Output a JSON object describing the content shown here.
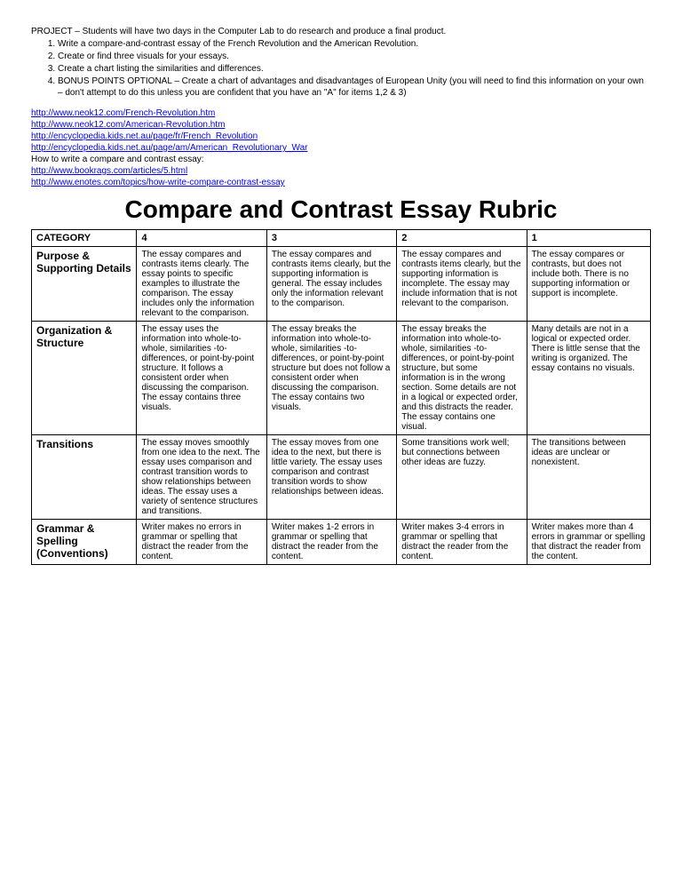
{
  "project": {
    "header": "PROJECT – Students will have two days in the Computer Lab to do research and produce a final product.",
    "items": [
      "Write a compare-and-contrast essay of the French Revolution and the American Revolution.",
      "Create or find three visuals for your essays.",
      "Create a chart listing the similarities and differences.",
      "BONUS POINTS OPTIONAL – Create a chart of advantages and disadvantages of European Unity (you will need to find this information on your own – don't attempt to do this unless you are confident that you have an \"A\" for items 1,2 & 3)"
    ]
  },
  "links": [
    {
      "text": "http://www.neok12.com/French-Revolution.htm",
      "link": true
    },
    {
      "text": "http://www.neok12.com/American-Revolution.htm",
      "link": true
    },
    {
      "text": "http://encyclopedia.kids.net.au/page/fr/French_Revolution",
      "link": true
    },
    {
      "text": "http://encyclopedia.kids.net.au/page/am/American_Revolutionary_War",
      "link": true
    },
    {
      "text": "How to write a compare and contrast essay:",
      "link": false
    },
    {
      "text": "http://www.bookrags.com/articles/5.html",
      "link": true
    },
    {
      "text": "http://www.enotes.com/topics/how-write-compare-contrast-essay",
      "link": true
    }
  ],
  "rubric": {
    "title": "Compare and Contrast Essay Rubric",
    "headers": [
      "CATEGORY",
      "4",
      "3",
      "2",
      "1"
    ],
    "rows": [
      {
        "category": "Purpose & Supporting Details",
        "c4": "The essay compares and contrasts items clearly. The essay points to specific examples to illustrate the comparison. The essay includes only the information relevant to the comparison.",
        "c3": "The essay compares and contrasts items clearly, but the supporting information is general. The essay includes only the information relevant to the comparison.",
        "c2": "The essay compares and contrasts items clearly, but the supporting information is incomplete. The essay may include information that is not relevant to the comparison.",
        "c1": "The essay compares or contrasts, but does not include both. There is no supporting information or support is incomplete."
      },
      {
        "category": "Organization & Structure",
        "c4": "The essay uses the information into whole-to-whole, similarities -to- differences, or point-by-point structure. It follows a consistent order when discussing the comparison. The essay contains three visuals.",
        "c3": "The essay breaks the information into whole-to-whole, similarities -to- differences, or point-by-point structure but does not follow a consistent order when discussing the comparison. The essay contains two visuals.",
        "c2": "The essay breaks the information into whole-to-whole, similarities -to- differences, or point-by-point structure, but some information is in the wrong section. Some details are not in a logical or expected order, and this distracts the reader. The essay contains one visual.",
        "c1": "Many details are not in a logical or expected order. There is little sense that the writing is organized. The essay contains no visuals."
      },
      {
        "category": "Transitions",
        "c4": "The essay moves smoothly from one idea to the next. The essay uses comparison and contrast transition words to show relationships between ideas. The essay uses a variety of sentence structures and transitions.",
        "c3": "The essay moves from one idea to the next, but there is little variety. The essay uses comparison and contrast transition words to show relationships between ideas.",
        "c2": "Some transitions work well; but connections between other ideas are fuzzy.",
        "c1": "The transitions between ideas are unclear or nonexistent."
      },
      {
        "category": "Grammar & Spelling (Conventions)",
        "c4": "Writer makes no errors in grammar or spelling that distract the reader from the content.",
        "c3": "Writer makes 1-2 errors in grammar or spelling that distract the reader from the content.",
        "c2": "Writer makes 3-4 errors in grammar or spelling that distract the reader from the content.",
        "c1": "Writer makes more than 4 errors in grammar or spelling that distract the reader from the content."
      }
    ]
  }
}
